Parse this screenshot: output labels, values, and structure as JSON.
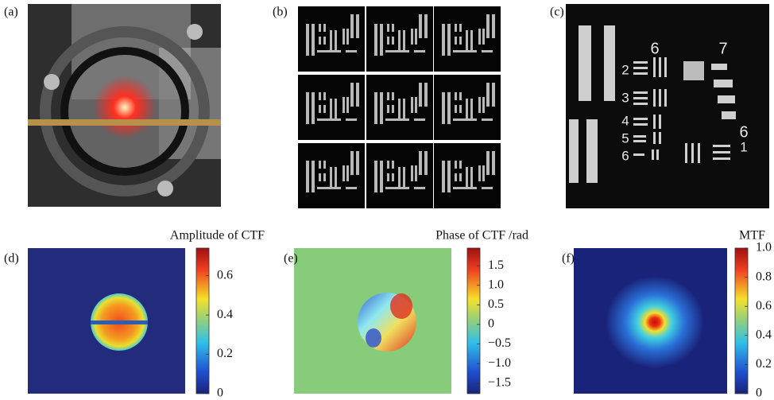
{
  "panels": [
    {
      "label": "(a)"
    },
    {
      "label": "(b)"
    },
    {
      "label": "(c)",
      "image_text": [
        "6",
        "7",
        "2",
        "3",
        "4",
        "5",
        "6",
        "6",
        "1"
      ]
    },
    {
      "label": "(d)",
      "colorbar": {
        "title": "Amplitude of CTF",
        "lim": [
          0,
          0.74
        ],
        "ticks": [
          0,
          0.2,
          0.4,
          0.6
        ]
      }
    },
    {
      "label": "(e)",
      "colorbar": {
        "title": "Phase of CTF /rad",
        "lim": [
          -1.77,
          1.95
        ],
        "ticks": [
          {
            "value": -1.5,
            "label": "−1.5"
          },
          {
            "value": -1,
            "label": "−1.0"
          },
          {
            "value": -0.5,
            "label": "−0.5"
          },
          0,
          0.5,
          {
            "value": 1,
            "label": "1.0"
          },
          1.5
        ]
      }
    },
    {
      "label": "(f)",
      "colorbar": {
        "title": "MTF",
        "lim": [
          0,
          1
        ],
        "ticks": [
          0,
          0.2,
          0.4,
          0.6,
          0.8,
          {
            "value": 1,
            "label": "1.0"
          }
        ]
      }
    }
  ]
}
